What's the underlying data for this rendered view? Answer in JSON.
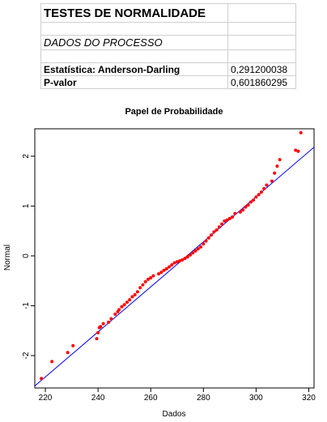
{
  "spreadsheet": {
    "heading": "TESTES DE NORMALIDADE",
    "section": "DADOS DO PROCESSO",
    "rows": [
      {
        "label": "Estatística: Anderson-Darling",
        "value": "0,291200038"
      },
      {
        "label": "P-valor",
        "value": "0,601860295"
      }
    ]
  },
  "chart_data": {
    "type": "scatter",
    "title": "Papel de Probabilidade",
    "xlabel": "Dados",
    "ylabel": "Normal",
    "xlim": [
      216,
      322
    ],
    "ylim": [
      -2.65,
      2.55
    ],
    "xticks": [
      220,
      240,
      260,
      280,
      300,
      320
    ],
    "yticks": [
      -2,
      -1,
      0,
      1,
      2
    ],
    "reference_line": {
      "from": [
        216,
        -2.61
      ],
      "to": [
        322,
        2.18
      ],
      "color": "#0000ff"
    },
    "point_color": "#ff0000",
    "series": [
      {
        "x": [
          218.5,
          222.5,
          228.5,
          230.5,
          239.5,
          240.0,
          240.5,
          241.0,
          242.0,
          244.0,
          245.0,
          246.5,
          247.5,
          248.0,
          249.0,
          250.0,
          251.0,
          252.0,
          253.0,
          254.0,
          255.0,
          256.0,
          257.0,
          258.0,
          259.0,
          260.0,
          261.0,
          263.0,
          264.0,
          265.0,
          266.0,
          267.0,
          268.0,
          269.0,
          270.0,
          271.0,
          272.0,
          273.0,
          274.0,
          275.0,
          276.0,
          277.0,
          278.0,
          279.0,
          280.0,
          281.0,
          282.0,
          283.0,
          284.0,
          285.0,
          286.0,
          287.0,
          288.0,
          289.0,
          290.0,
          291.0,
          292.0,
          294.0,
          295.0,
          296.0,
          297.0,
          298.0,
          299.0,
          300.0,
          301.0,
          302.0,
          303.0,
          304.0,
          306.0,
          307.0,
          308.0,
          309.0,
          315.0,
          316.0,
          317.0
        ],
        "y": [
          -2.46,
          -2.12,
          -1.94,
          -1.8,
          -1.66,
          -1.54,
          -1.44,
          -1.42,
          -1.36,
          -1.33,
          -1.26,
          -1.17,
          -1.12,
          -1.08,
          -1.02,
          -0.98,
          -0.93,
          -0.88,
          -0.82,
          -0.78,
          -0.72,
          -0.64,
          -0.58,
          -0.52,
          -0.47,
          -0.44,
          -0.4,
          -0.36,
          -0.33,
          -0.29,
          -0.26,
          -0.22,
          -0.18,
          -0.14,
          -0.12,
          -0.1,
          -0.08,
          -0.05,
          -0.02,
          0.02,
          0.06,
          0.1,
          0.14,
          0.18,
          0.24,
          0.3,
          0.36,
          0.42,
          0.48,
          0.52,
          0.58,
          0.64,
          0.7,
          0.72,
          0.75,
          0.78,
          0.85,
          0.88,
          0.92,
          0.98,
          1.02,
          1.08,
          1.12,
          1.18,
          1.23,
          1.28,
          1.35,
          1.42,
          1.5,
          1.66,
          1.8,
          1.93,
          2.12,
          2.1,
          2.47
        ]
      }
    ]
  }
}
